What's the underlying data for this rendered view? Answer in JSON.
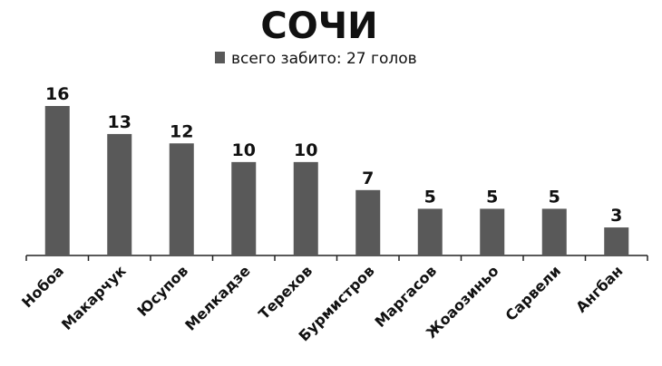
{
  "chart_data": {
    "type": "bar",
    "title": "СОЧИ",
    "categories": [
      "Нобоа",
      "Макарчук",
      "Юсупов",
      "Мелкадзе",
      "Терехов",
      "Бурмистров",
      "Маргасов",
      "Жоаозиньо",
      "Сарвели",
      "Ангбан"
    ],
    "series": [
      {
        "name": "всего забито: 27 голов",
        "color": "#595959",
        "values": [
          16,
          13,
          12,
          10,
          10,
          7,
          5,
          5,
          5,
          3
        ]
      }
    ]
  }
}
